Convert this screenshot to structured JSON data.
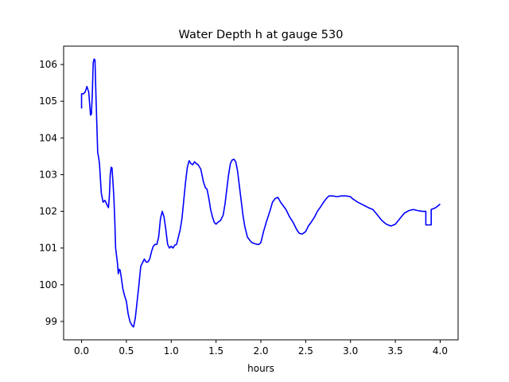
{
  "chart_data": {
    "type": "line",
    "title": "Water Depth h at gauge 530",
    "xlabel": "hours",
    "ylabel": "",
    "xlim": [
      -0.2,
      4.2
    ],
    "ylim": [
      98.5,
      106.5
    ],
    "xticks": [
      0.0,
      0.5,
      1.0,
      1.5,
      2.0,
      2.5,
      3.0,
      3.5,
      4.0
    ],
    "xtick_labels": [
      "0.0",
      "0.5",
      "1.0",
      "1.5",
      "2.0",
      "2.5",
      "3.0",
      "3.5",
      "4.0"
    ],
    "yticks": [
      99,
      100,
      101,
      102,
      103,
      104,
      105,
      106
    ],
    "ytick_labels": [
      "99",
      "100",
      "101",
      "102",
      "103",
      "104",
      "105",
      "106"
    ],
    "grid": false,
    "legend": "none",
    "series": [
      {
        "color": "#0000ff",
        "x": [
          0.0,
          0.0,
          0.02,
          0.04,
          0.06,
          0.08,
          0.1,
          0.11,
          0.12,
          0.13,
          0.14,
          0.15,
          0.16,
          0.17,
          0.18,
          0.19,
          0.2,
          0.21,
          0.22,
          0.24,
          0.26,
          0.28,
          0.3,
          0.31,
          0.32,
          0.33,
          0.34,
          0.35,
          0.36,
          0.37,
          0.38,
          0.4,
          0.41,
          0.42,
          0.43,
          0.44,
          0.46,
          0.48,
          0.5,
          0.52,
          0.54,
          0.56,
          0.58,
          0.6,
          0.62,
          0.64,
          0.66,
          0.68,
          0.7,
          0.72,
          0.74,
          0.76,
          0.78,
          0.8,
          0.82,
          0.84,
          0.86,
          0.88,
          0.9,
          0.92,
          0.94,
          0.96,
          0.98,
          1.0,
          1.02,
          1.04,
          1.06,
          1.08,
          1.1,
          1.12,
          1.14,
          1.16,
          1.18,
          1.2,
          1.22,
          1.24,
          1.26,
          1.28,
          1.3,
          1.33,
          1.36,
          1.38,
          1.4,
          1.42,
          1.44,
          1.46,
          1.48,
          1.5,
          1.52,
          1.55,
          1.58,
          1.6,
          1.62,
          1.64,
          1.66,
          1.68,
          1.7,
          1.72,
          1.74,
          1.76,
          1.78,
          1.8,
          1.82,
          1.85,
          1.88,
          1.9,
          1.93,
          1.96,
          1.98,
          2.0,
          2.03,
          2.06,
          2.1,
          2.13,
          2.16,
          2.19,
          2.22,
          2.25,
          2.28,
          2.32,
          2.36,
          2.4,
          2.43,
          2.46,
          2.5,
          2.53,
          2.56,
          2.6,
          2.63,
          2.66,
          2.7,
          2.73,
          2.76,
          2.8,
          2.85,
          2.9,
          2.95,
          3.0,
          3.02,
          3.05,
          3.08,
          3.12,
          3.16,
          3.2,
          3.25,
          3.3,
          3.35,
          3.4,
          3.45,
          3.5,
          3.55,
          3.6,
          3.65,
          3.7,
          3.75,
          3.8,
          3.84,
          3.84,
          3.9,
          3.9,
          3.95,
          4.0
        ],
        "y": [
          104.8,
          105.2,
          105.2,
          105.25,
          105.4,
          105.25,
          104.62,
          104.65,
          105.2,
          106.05,
          106.15,
          106.12,
          105.2,
          104.4,
          103.6,
          103.48,
          103.3,
          102.9,
          102.5,
          102.25,
          102.3,
          102.2,
          102.1,
          102.4,
          103.0,
          103.2,
          103.18,
          102.8,
          102.4,
          101.8,
          101.0,
          100.6,
          100.3,
          100.42,
          100.4,
          100.25,
          99.9,
          99.7,
          99.55,
          99.2,
          99.0,
          98.9,
          98.85,
          99.1,
          99.55,
          100.0,
          100.5,
          100.6,
          100.7,
          100.62,
          100.62,
          100.7,
          100.9,
          101.05,
          101.1,
          101.1,
          101.3,
          101.8,
          102.0,
          101.85,
          101.5,
          101.1,
          101.0,
          101.05,
          101.0,
          101.08,
          101.1,
          101.3,
          101.5,
          101.8,
          102.3,
          102.8,
          103.2,
          103.38,
          103.3,
          103.27,
          103.35,
          103.3,
          103.27,
          103.15,
          102.8,
          102.65,
          102.6,
          102.35,
          102.05,
          101.85,
          101.7,
          101.65,
          101.7,
          101.75,
          101.9,
          102.2,
          102.6,
          103.0,
          103.3,
          103.4,
          103.42,
          103.35,
          103.1,
          102.7,
          102.3,
          101.9,
          101.6,
          101.3,
          101.2,
          101.15,
          101.12,
          101.1,
          101.1,
          101.15,
          101.45,
          101.7,
          102.0,
          102.25,
          102.35,
          102.38,
          102.25,
          102.15,
          102.05,
          101.85,
          101.7,
          101.5,
          101.4,
          101.38,
          101.45,
          101.6,
          101.7,
          101.85,
          102.0,
          102.1,
          102.25,
          102.35,
          102.42,
          102.42,
          102.4,
          102.42,
          102.42,
          102.4,
          102.35,
          102.3,
          102.25,
          102.2,
          102.15,
          102.1,
          102.05,
          101.9,
          101.75,
          101.65,
          101.6,
          101.65,
          101.8,
          101.95,
          102.02,
          102.05,
          102.02,
          102.0,
          102.0,
          101.63,
          101.63,
          102.05,
          102.1,
          102.2
        ]
      }
    ]
  }
}
